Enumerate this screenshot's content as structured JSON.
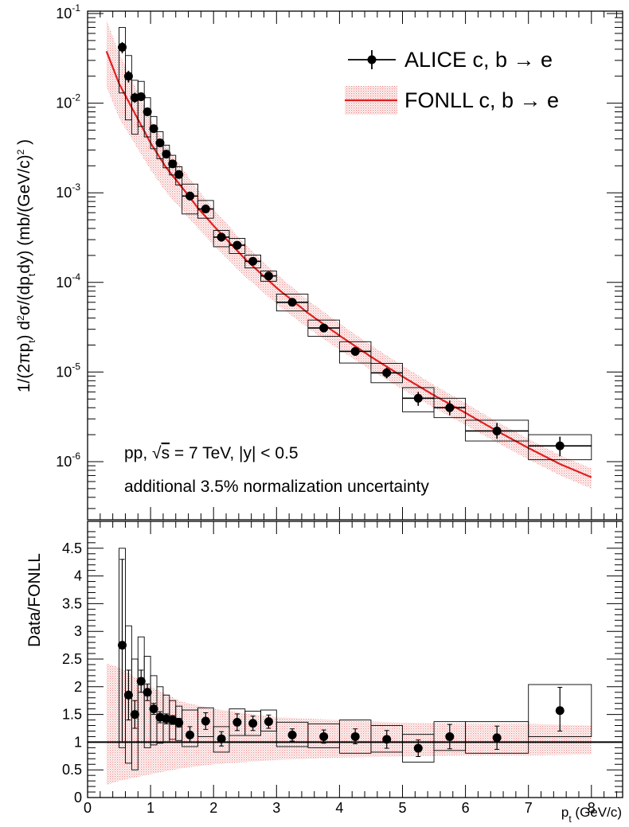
{
  "chart_data": [
    {
      "type": "scatter",
      "panel": "top",
      "ylabel_parts": [
        "1/(2πp",
        "t",
        ") d",
        "2",
        "σ/(dp",
        "t",
        "dy) (mb/(GeV/c)",
        "2",
        " )"
      ],
      "yscale": "log",
      "ylim": [
        2.5e-07,
        0.1
      ],
      "xlim": [
        0,
        8.5
      ],
      "y_tick_labels": [
        {
          "base": "10",
          "exp": "-1",
          "value": 0.1
        },
        {
          "base": "10",
          "exp": "-2",
          "value": 0.01
        },
        {
          "base": "10",
          "exp": "-3",
          "value": 0.001
        },
        {
          "base": "10",
          "exp": "-4",
          "value": 0.0001
        },
        {
          "base": "10",
          "exp": "-5",
          "value": 1e-05
        },
        {
          "base": "10",
          "exp": "-6",
          "value": 1e-06
        }
      ],
      "legend": {
        "placement": "top-right",
        "entries": [
          {
            "label": "ALICE c, b → e",
            "marker": "circle-with-error-bars",
            "color": "#000000"
          },
          {
            "label": "FONLL c, b → e",
            "marker": "line-with-band",
            "color": "#e02020"
          }
        ]
      },
      "annotations": {
        "line1_a": "pp, ",
        "line1_sqrt": "√",
        "line1_s": "s",
        "line1_b": " = 7 TeV, |y| < 0.5",
        "line2": "additional 3.5% normalization uncertainty"
      },
      "series": [
        {
          "name": "ALICE c, b → e",
          "points": [
            {
              "x": 0.55,
              "y": 0.042,
              "xlo": 0.5,
              "xhi": 0.6,
              "syslo": 0.013,
              "syshi": 0.07,
              "statlo": 0.036,
              "stathi": 0.048
            },
            {
              "x": 0.65,
              "y": 0.02,
              "xlo": 0.6,
              "xhi": 0.7,
              "syslo": 0.0065,
              "syshi": 0.034,
              "statlo": 0.017,
              "stathi": 0.023
            },
            {
              "x": 0.75,
              "y": 0.0115,
              "xlo": 0.7,
              "xhi": 0.8,
              "syslo": 0.0045,
              "syshi": 0.018,
              "statlo": 0.0101,
              "stathi": 0.0131
            },
            {
              "x": 0.85,
              "y": 0.0118,
              "xlo": 0.8,
              "xhi": 0.9,
              "syslo": 0.0055,
              "syshi": 0.0175,
              "statlo": 0.0106,
              "stathi": 0.0132
            },
            {
              "x": 0.95,
              "y": 0.008,
              "xlo": 0.9,
              "xhi": 1.0,
              "syslo": 0.0042,
              "syshi": 0.0115,
              "statlo": 0.0072,
              "stathi": 0.0089
            },
            {
              "x": 1.05,
              "y": 0.0052,
              "xlo": 1.0,
              "xhi": 1.1,
              "syslo": 0.0031,
              "syshi": 0.0071,
              "statlo": 0.0047,
              "stathi": 0.0057
            },
            {
              "x": 1.15,
              "y": 0.0036,
              "xlo": 1.1,
              "xhi": 1.2,
              "syslo": 0.0024,
              "syshi": 0.0048,
              "statlo": 0.00325,
              "stathi": 0.00395
            },
            {
              "x": 1.25,
              "y": 0.0027,
              "xlo": 1.2,
              "xhi": 1.3,
              "syslo": 0.0019,
              "syshi": 0.0034,
              "statlo": 0.00245,
              "stathi": 0.00295
            },
            {
              "x": 1.35,
              "y": 0.0021,
              "xlo": 1.3,
              "xhi": 1.4,
              "syslo": 0.00158,
              "syshi": 0.00262,
              "statlo": 0.0019,
              "stathi": 0.0023
            },
            {
              "x": 1.45,
              "y": 0.0016,
              "xlo": 1.4,
              "xhi": 1.5,
              "syslo": 0.00122,
              "syshi": 0.00195,
              "statlo": 0.00145,
              "stathi": 0.00175
            },
            {
              "x": 1.625,
              "y": 0.00092,
              "xlo": 1.5,
              "xhi": 1.75,
              "syslo": 0.00058,
              "syshi": 0.00125,
              "statlo": 0.00082,
              "stathi": 0.00102
            },
            {
              "x": 1.875,
              "y": 0.00066,
              "xlo": 1.75,
              "xhi": 2.0,
              "syslo": 0.00052,
              "syshi": 0.00082,
              "statlo": 0.00059,
              "stathi": 0.00073
            },
            {
              "x": 2.125,
              "y": 0.00032,
              "xlo": 2.0,
              "xhi": 2.25,
              "syslo": 0.00025,
              "syshi": 0.00038,
              "statlo": 0.000285,
              "stathi": 0.000355
            },
            {
              "x": 2.375,
              "y": 0.00026,
              "xlo": 2.25,
              "xhi": 2.5,
              "syslo": 0.00021,
              "syshi": 0.00031,
              "statlo": 0.000232,
              "stathi": 0.000288
            },
            {
              "x": 2.625,
              "y": 0.000172,
              "xlo": 2.5,
              "xhi": 2.75,
              "syslo": 0.000145,
              "syshi": 0.000202,
              "statlo": 0.000155,
              "stathi": 0.00019
            },
            {
              "x": 2.875,
              "y": 0.000118,
              "xlo": 2.75,
              "xhi": 3.0,
              "syslo": 0.000103,
              "syshi": 0.000134,
              "statlo": 0.000108,
              "stathi": 0.000128
            },
            {
              "x": 3.25,
              "y": 6e-05,
              "xlo": 3.0,
              "xhi": 3.5,
              "syslo": 4.8e-05,
              "syshi": 7.4e-05,
              "statlo": 5.5e-05,
              "stathi": 6.5e-05
            },
            {
              "x": 3.75,
              "y": 3.1e-05,
              "xlo": 3.5,
              "xhi": 4.0,
              "syslo": 2.5e-05,
              "syshi": 3.8e-05,
              "statlo": 2.85e-05,
              "stathi": 3.35e-05
            },
            {
              "x": 4.25,
              "y": 1.7e-05,
              "xlo": 4.0,
              "xhi": 4.5,
              "syslo": 1.26e-05,
              "syshi": 2.18e-05,
              "statlo": 1.52e-05,
              "stathi": 1.88e-05
            },
            {
              "x": 4.75,
              "y": 9.8e-06,
              "xlo": 4.5,
              "xhi": 5.0,
              "syslo": 7.6e-06,
              "syshi": 1.25e-05,
              "statlo": 8.5e-06,
              "stathi": 1.12e-05
            },
            {
              "x": 5.25,
              "y": 5.1e-06,
              "xlo": 5.0,
              "xhi": 5.5,
              "syslo": 3.6e-06,
              "syshi": 6.7e-06,
              "statlo": 4.2e-06,
              "stathi": 6e-06
            },
            {
              "x": 5.75,
              "y": 4e-06,
              "xlo": 5.5,
              "xhi": 6.0,
              "syslo": 3.1e-06,
              "syshi": 5.1e-06,
              "statlo": 3.3e-06,
              "stathi": 4.8e-06
            },
            {
              "x": 6.5,
              "y": 2.2e-06,
              "xlo": 6.0,
              "xhi": 7.0,
              "syslo": 1.7e-06,
              "syshi": 2.9e-06,
              "statlo": 1.8e-06,
              "stathi": 2.7e-06
            },
            {
              "x": 7.5,
              "y": 1.5e-06,
              "xlo": 7.0,
              "xhi": 8.0,
              "syslo": 1.05e-06,
              "syshi": 2e-06,
              "statlo": 1.15e-06,
              "stathi": 1.9e-06
            }
          ]
        },
        {
          "name": "FONLL c, b → e",
          "curve": [
            {
              "x": 0.3,
              "y": 0.038,
              "lo": 0.0152,
              "hi": 0.085
            },
            {
              "x": 0.5,
              "y": 0.0165,
              "lo": 0.0068,
              "hi": 0.036
            },
            {
              "x": 0.75,
              "y": 0.0077,
              "lo": 0.0035,
              "hi": 0.0155
            },
            {
              "x": 1.0,
              "y": 0.0036,
              "lo": 0.0018,
              "hi": 0.0066
            },
            {
              "x": 1.25,
              "y": 0.0019,
              "lo": 0.00101,
              "hi": 0.0033
            },
            {
              "x": 1.5,
              "y": 0.00115,
              "lo": 0.00064,
              "hi": 0.0019
            },
            {
              "x": 1.75,
              "y": 0.00068,
              "lo": 0.0004,
              "hi": 0.00109
            },
            {
              "x": 2.0,
              "y": 0.00043,
              "lo": 0.000263,
              "hi": 0.00066
            },
            {
              "x": 2.5,
              "y": 0.000182,
              "lo": 0.000116,
              "hi": 0.000268
            },
            {
              "x": 3.0,
              "y": 8.7e-05,
              "lo": 5.75e-05,
              "hi": 0.000124
            },
            {
              "x": 3.5,
              "y": 4.55e-05,
              "lo": 3.08e-05,
              "hi": 6.34e-05
            },
            {
              "x": 4.0,
              "y": 2.55e-05,
              "lo": 1.77e-05,
              "hi": 3.49e-05
            },
            {
              "x": 4.5,
              "y": 1.48e-05,
              "lo": 1.05e-05,
              "hi": 1.99e-05
            },
            {
              "x": 5.0,
              "y": 8.9e-06,
              "lo": 6.4e-06,
              "hi": 1.18e-05
            },
            {
              "x": 5.5,
              "y": 5.5e-06,
              "lo": 4e-06,
              "hi": 7.2e-06
            },
            {
              "x": 6.0,
              "y": 3.5e-06,
              "lo": 2.56e-06,
              "hi": 4.5e-06
            },
            {
              "x": 6.5,
              "y": 2.2e-06,
              "lo": 1.63e-06,
              "hi": 2.8e-06
            },
            {
              "x": 7.0,
              "y": 1.42e-06,
              "lo": 1.06e-06,
              "hi": 1.8e-06
            },
            {
              "x": 7.5,
              "y": 9.4e-07,
              "lo": 7e-07,
              "hi": 1.18e-06
            },
            {
              "x": 8.0,
              "y": 6.7e-07,
              "lo": 5e-07,
              "hi": 8.4e-07
            }
          ]
        }
      ]
    },
    {
      "type": "scatter",
      "panel": "bottom",
      "ylabel": "Data/FONLL",
      "xlabel_main": "p",
      "xlabel_sub": "t",
      "xlabel_unit": " (GeV/c)",
      "xlim": [
        0,
        8.5
      ],
      "ylim": [
        0,
        4.8
      ],
      "x_tick_labels": [
        "0",
        "1",
        "2",
        "3",
        "4",
        "5",
        "6",
        "7",
        "8"
      ],
      "y_tick_labels": [
        "0",
        "0.5",
        "1",
        "1.5",
        "2",
        "2.5",
        "3",
        "3.5",
        "4",
        "4.5"
      ],
      "reference_line": 1.0,
      "band": [
        {
          "x": 0.3,
          "lo": 0.23,
          "hi": 2.42
        },
        {
          "x": 0.5,
          "lo": 0.3,
          "hi": 2.35
        },
        {
          "x": 1.0,
          "lo": 0.42,
          "hi": 2.0
        },
        {
          "x": 1.5,
          "lo": 0.53,
          "hi": 1.73
        },
        {
          "x": 2.0,
          "lo": 0.6,
          "hi": 1.6
        },
        {
          "x": 3.0,
          "lo": 0.68,
          "hi": 1.45
        },
        {
          "x": 4.0,
          "lo": 0.72,
          "hi": 1.4
        },
        {
          "x": 5.0,
          "lo": 0.74,
          "hi": 1.35
        },
        {
          "x": 6.0,
          "lo": 0.76,
          "hi": 1.33
        },
        {
          "x": 7.0,
          "lo": 0.76,
          "hi": 1.33
        },
        {
          "x": 8.0,
          "lo": 0.78,
          "hi": 1.3
        }
      ],
      "series": [
        {
          "name": "ALICE c, b → e",
          "points": [
            {
              "x": 0.55,
              "y": 2.75,
              "xlo": 0.5,
              "xhi": 0.6,
              "syslo": 0.9,
              "syshi": 4.5,
              "statlo": 1.0,
              "stathi": 4.3
            },
            {
              "x": 0.65,
              "y": 1.85,
              "xlo": 0.6,
              "xhi": 0.7,
              "syslo": 0.62,
              "syshi": 3.1,
              "statlo": 1.4,
              "stathi": 2.3
            },
            {
              "x": 0.75,
              "y": 1.5,
              "xlo": 0.7,
              "xhi": 0.8,
              "syslo": 0.5,
              "syshi": 2.5,
              "statlo": 1.25,
              "stathi": 1.75
            },
            {
              "x": 0.85,
              "y": 2.1,
              "xlo": 0.8,
              "xhi": 0.9,
              "syslo": 1.0,
              "syshi": 2.9,
              "statlo": 1.9,
              "stathi": 2.3
            },
            {
              "x": 0.95,
              "y": 1.9,
              "xlo": 0.9,
              "xhi": 1.0,
              "syslo": 0.9,
              "syshi": 2.55,
              "statlo": 1.75,
              "stathi": 2.05
            },
            {
              "x": 1.05,
              "y": 1.6,
              "xlo": 1.0,
              "xhi": 1.1,
              "syslo": 0.95,
              "syshi": 2.2,
              "statlo": 1.5,
              "stathi": 1.7
            },
            {
              "x": 1.15,
              "y": 1.45,
              "xlo": 1.1,
              "xhi": 1.2,
              "syslo": 0.98,
              "syshi": 2.0,
              "statlo": 1.35,
              "stathi": 1.55
            },
            {
              "x": 1.25,
              "y": 1.42,
              "xlo": 1.2,
              "xhi": 1.3,
              "syslo": 1.0,
              "syshi": 1.85,
              "statlo": 1.33,
              "stathi": 1.51
            },
            {
              "x": 1.35,
              "y": 1.4,
              "xlo": 1.3,
              "xhi": 1.4,
              "syslo": 1.05,
              "syshi": 1.75,
              "statlo": 1.32,
              "stathi": 1.48
            },
            {
              "x": 1.45,
              "y": 1.35,
              "xlo": 1.4,
              "xhi": 1.5,
              "syslo": 1.03,
              "syshi": 1.65,
              "statlo": 1.27,
              "stathi": 1.43
            },
            {
              "x": 1.625,
              "y": 1.13,
              "xlo": 1.5,
              "xhi": 1.75,
              "syslo": 0.92,
              "syshi": 1.58,
              "statlo": 1.0,
              "stathi": 1.28
            },
            {
              "x": 1.875,
              "y": 1.38,
              "xlo": 1.75,
              "xhi": 2.0,
              "syslo": 1.1,
              "syshi": 1.62,
              "statlo": 1.23,
              "stathi": 1.53
            },
            {
              "x": 2.125,
              "y": 1.06,
              "xlo": 2.0,
              "xhi": 2.25,
              "syslo": 0.82,
              "syshi": 1.28,
              "statlo": 0.93,
              "stathi": 1.19
            },
            {
              "x": 2.375,
              "y": 1.36,
              "xlo": 2.25,
              "xhi": 2.5,
              "syslo": 1.12,
              "syshi": 1.6,
              "statlo": 1.21,
              "stathi": 1.51
            },
            {
              "x": 2.625,
              "y": 1.34,
              "xlo": 2.5,
              "xhi": 2.75,
              "syslo": 1.12,
              "syshi": 1.56,
              "statlo": 1.21,
              "stathi": 1.47
            },
            {
              "x": 2.875,
              "y": 1.37,
              "xlo": 2.75,
              "xhi": 3.0,
              "syslo": 1.2,
              "syshi": 1.58,
              "statlo": 1.25,
              "stathi": 1.49
            },
            {
              "x": 3.25,
              "y": 1.13,
              "xlo": 3.0,
              "xhi": 3.5,
              "syslo": 0.92,
              "syshi": 1.36,
              "statlo": 1.02,
              "stathi": 1.24
            },
            {
              "x": 3.75,
              "y": 1.1,
              "xlo": 3.5,
              "xhi": 4.0,
              "syslo": 0.9,
              "syshi": 1.33,
              "statlo": 0.98,
              "stathi": 1.22
            },
            {
              "x": 4.25,
              "y": 1.1,
              "xlo": 4.0,
              "xhi": 4.5,
              "syslo": 0.8,
              "syshi": 1.4,
              "statlo": 0.97,
              "stathi": 1.24
            },
            {
              "x": 4.75,
              "y": 1.05,
              "xlo": 4.5,
              "xhi": 5.0,
              "syslo": 0.82,
              "syshi": 1.3,
              "statlo": 0.89,
              "stathi": 1.21
            },
            {
              "x": 5.25,
              "y": 0.89,
              "xlo": 5.0,
              "xhi": 5.5,
              "syslo": 0.64,
              "syshi": 1.14,
              "statlo": 0.74,
              "stathi": 1.04
            },
            {
              "x": 5.75,
              "y": 1.1,
              "xlo": 5.5,
              "xhi": 6.0,
              "syslo": 0.85,
              "syshi": 1.37,
              "statlo": 0.88,
              "stathi": 1.32
            },
            {
              "x": 6.5,
              "y": 1.08,
              "xlo": 6.0,
              "xhi": 7.0,
              "syslo": 0.8,
              "syshi": 1.37,
              "statlo": 0.87,
              "stathi": 1.29
            },
            {
              "x": 7.5,
              "y": 1.57,
              "xlo": 7.0,
              "xhi": 8.0,
              "syslo": 1.1,
              "syshi": 2.04,
              "statlo": 1.2,
              "stathi": 1.99
            }
          ]
        }
      ]
    }
  ]
}
